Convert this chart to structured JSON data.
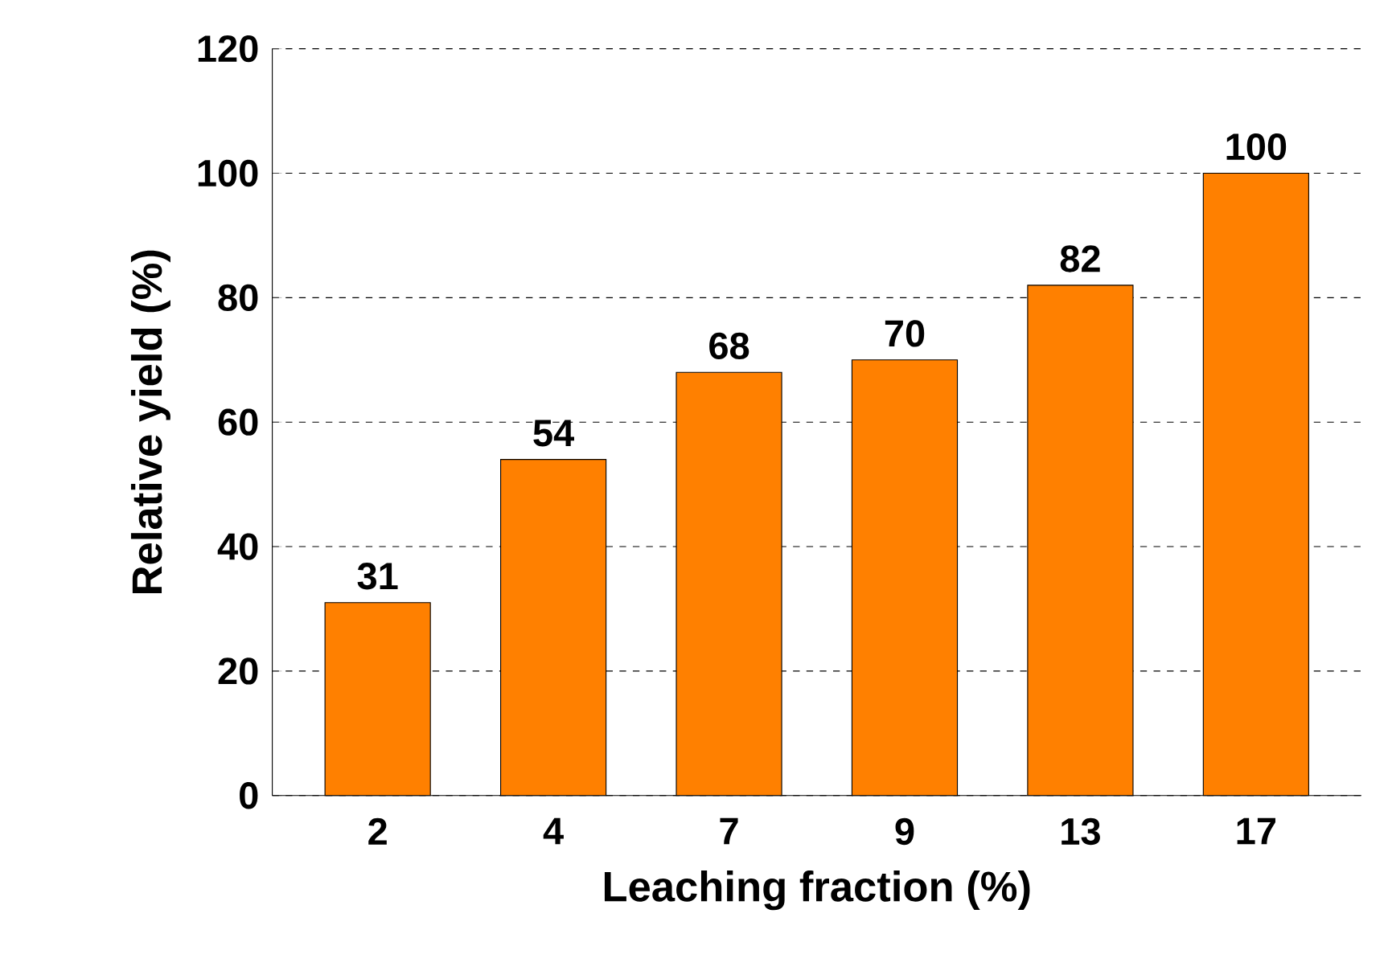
{
  "chart_data": {
    "type": "bar",
    "xlabel": "Leaching fraction (%)",
    "ylabel": "Relative yield (%)",
    "categories": [
      "2",
      "4",
      "7",
      "9",
      "13",
      "17"
    ],
    "values": [
      31,
      54,
      68,
      70,
      82,
      100
    ],
    "color": "#ff8000",
    "ylim": [
      0,
      120
    ],
    "yticks": [
      0,
      20,
      40,
      60,
      80,
      100,
      120
    ],
    "grid": "y",
    "data_labels": true
  }
}
